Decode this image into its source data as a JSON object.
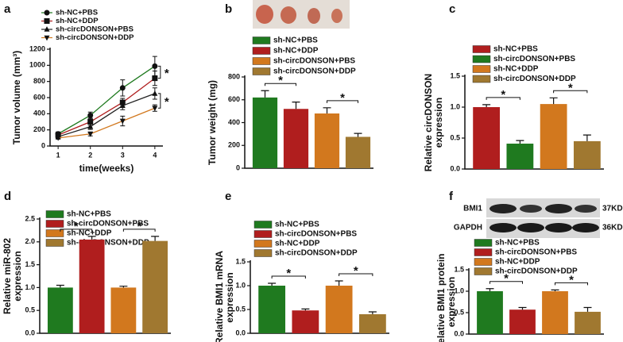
{
  "chart_data": [
    {
      "type": "line",
      "panel": "a",
      "y_label": "Tumor volume (mm³)",
      "x_label": "time(weeks)",
      "x": [
        1,
        2,
        3,
        4
      ],
      "xlim": [
        0.75,
        4.25
      ],
      "xticks": [
        1,
        2,
        3,
        4
      ],
      "ylim": [
        0,
        1200
      ],
      "yticks": [
        0,
        200,
        400,
        600,
        800,
        1000,
        1200
      ],
      "annotations": [
        "*",
        "*"
      ],
      "series": [
        {
          "name": "sh-NC+PBS",
          "color": "#1f7a1f",
          "marker": "circle",
          "values": [
            150,
            380,
            720,
            990
          ],
          "errors": [
            25,
            40,
            100,
            120
          ]
        },
        {
          "name": "sh-NC+DDP",
          "color": "#b01e1e",
          "marker": "square",
          "values": [
            135,
            300,
            540,
            840
          ],
          "errors": [
            20,
            45,
            50,
            90
          ]
        },
        {
          "name": "sh-circDONSON+PBS",
          "color": "#222222",
          "marker": "triangle",
          "values": [
            115,
            240,
            500,
            650
          ],
          "errors": [
            15,
            35,
            50,
            70
          ]
        },
        {
          "name": "sh-circDONSON+DDP",
          "color": "#d2781e",
          "marker": "triangle-down",
          "values": [
            100,
            150,
            310,
            470
          ],
          "errors": [
            15,
            25,
            60,
            40
          ]
        }
      ]
    },
    {
      "type": "bar",
      "panel": "b",
      "y_label": "Tumor weight (mg)",
      "categories": [
        null
      ],
      "ylim": [
        0,
        800
      ],
      "yticks": [
        0,
        200,
        400,
        600,
        800
      ],
      "annotations": [
        "*",
        "*"
      ],
      "series": [
        {
          "name": "sh-NC+PBS",
          "color": "#1f7a1f",
          "values": [
            620
          ],
          "errors": [
            60
          ]
        },
        {
          "name": "sh-NC+DDP",
          "color": "#b01e1e",
          "values": [
            520
          ],
          "errors": [
            60
          ]
        },
        {
          "name": "sh-circDONSON+PBS",
          "color": "#d2781e",
          "values": [
            480
          ],
          "errors": [
            50
          ]
        },
        {
          "name": "sh-circDONSON+DDP",
          "color": "#a07830",
          "values": [
            275
          ],
          "errors": [
            30
          ]
        }
      ]
    },
    {
      "type": "bar",
      "panel": "c",
      "y_label": [
        "Relative circDONSON",
        "expression"
      ],
      "categories": [
        null
      ],
      "ylim": [
        0,
        1.5
      ],
      "yticks": [
        {
          "value": 0,
          "label": "0.0"
        },
        {
          "value": 0.5,
          "label": "0.5"
        },
        {
          "value": 1,
          "label": "1.0"
        },
        {
          "value": 1.5,
          "label": "1.5"
        }
      ],
      "annotations": [
        "*",
        "*"
      ],
      "series": [
        {
          "name": "sh-NC+PBS",
          "color": "#b01e1e",
          "values": [
            1.0
          ],
          "errors": [
            0.04
          ]
        },
        {
          "name": "sh-circDONSON+PBS",
          "color": "#1f7a1f",
          "values": [
            0.41
          ],
          "errors": [
            0.05
          ]
        },
        {
          "name": "sh-NC+DDP",
          "color": "#d2781e",
          "values": [
            1.05
          ],
          "errors": [
            0.1
          ]
        },
        {
          "name": "sh-circDONSON+DDP",
          "color": "#a07830",
          "values": [
            0.45
          ],
          "errors": [
            0.1
          ]
        }
      ]
    },
    {
      "type": "bar",
      "panel": "d",
      "y_label": [
        "Relative miR-802",
        "expression"
      ],
      "categories": [
        null
      ],
      "ylim": [
        0,
        2.5
      ],
      "yticks": [
        {
          "value": 0,
          "label": "0.0"
        },
        {
          "value": 0.5,
          "label": "0.5"
        },
        {
          "value": 1,
          "label": "1.0"
        },
        {
          "value": 1.5,
          "label": "1.5"
        },
        {
          "value": 2,
          "label": "2.0"
        },
        {
          "value": 2.5,
          "label": "2.5"
        }
      ],
      "annotations": [
        "*",
        "*"
      ],
      "series": [
        {
          "name": "sh-NC+PBS",
          "color": "#1f7a1f",
          "values": [
            1.0
          ],
          "errors": [
            0.05
          ]
        },
        {
          "name": "sh-circDONSON+PBS",
          "color": "#b01e1e",
          "values": [
            2.05
          ],
          "errors": [
            0.07
          ]
        },
        {
          "name": "sh-NC+DDP",
          "color": "#d2781e",
          "values": [
            1.0
          ],
          "errors": [
            0.03
          ]
        },
        {
          "name": "sh-circDONSON+DDP",
          "color": "#a07830",
          "values": [
            2.02
          ],
          "errors": [
            0.1
          ]
        }
      ]
    },
    {
      "type": "bar",
      "panel": "e",
      "y_label": [
        "Relative BMI1 mRNA",
        "expression"
      ],
      "categories": [
        null
      ],
      "ylim": [
        0,
        1.5
      ],
      "yticks": [
        {
          "value": 0,
          "label": "0.0"
        },
        {
          "value": 0.5,
          "label": "0.5"
        },
        {
          "value": 1,
          "label": "1.0"
        },
        {
          "value": 1.5,
          "label": "1.5"
        }
      ],
      "annotations": [
        "*",
        "*"
      ],
      "series": [
        {
          "name": "sh-NC+PBS",
          "color": "#1f7a1f",
          "values": [
            1.0
          ],
          "errors": [
            0.05
          ]
        },
        {
          "name": "sh-circDONSON+PBS",
          "color": "#b01e1e",
          "values": [
            0.48
          ],
          "errors": [
            0.03
          ]
        },
        {
          "name": "sh-NC+DDP",
          "color": "#d2781e",
          "values": [
            1.0
          ],
          "errors": [
            0.1
          ]
        },
        {
          "name": "sh-circDONSON+DDP",
          "color": "#a07830",
          "values": [
            0.4
          ],
          "errors": [
            0.05
          ]
        }
      ]
    },
    {
      "type": "bar",
      "panel": "f",
      "y_label": [
        "Relative BMI1 protein",
        "expression"
      ],
      "categories": [
        null
      ],
      "blot_labels": [
        "BMI1",
        "GAPDH"
      ],
      "blot_sizes": [
        "37KD",
        "36KD"
      ],
      "ylim": [
        0,
        1.5
      ],
      "yticks": [
        {
          "value": 0,
          "label": "0.0"
        },
        {
          "value": 0.5,
          "label": "0.5"
        },
        {
          "value": 1,
          "label": "1.0"
        },
        {
          "value": 1.5,
          "label": "1.5"
        }
      ],
      "annotations": [
        "*",
        "*"
      ],
      "series": [
        {
          "name": "sh-NC+PBS",
          "color": "#1f7a1f",
          "values": [
            1.0
          ],
          "errors": [
            0.06
          ]
        },
        {
          "name": "sh-circDONSON+PBS",
          "color": "#b01e1e",
          "values": [
            0.57
          ],
          "errors": [
            0.05
          ]
        },
        {
          "name": "sh-NC+DDP",
          "color": "#d2781e",
          "values": [
            1.0
          ],
          "errors": [
            0.03
          ]
        },
        {
          "name": "sh-circDONSON+DDP",
          "color": "#a07830",
          "values": [
            0.52
          ],
          "errors": [
            0.1
          ]
        }
      ]
    }
  ]
}
